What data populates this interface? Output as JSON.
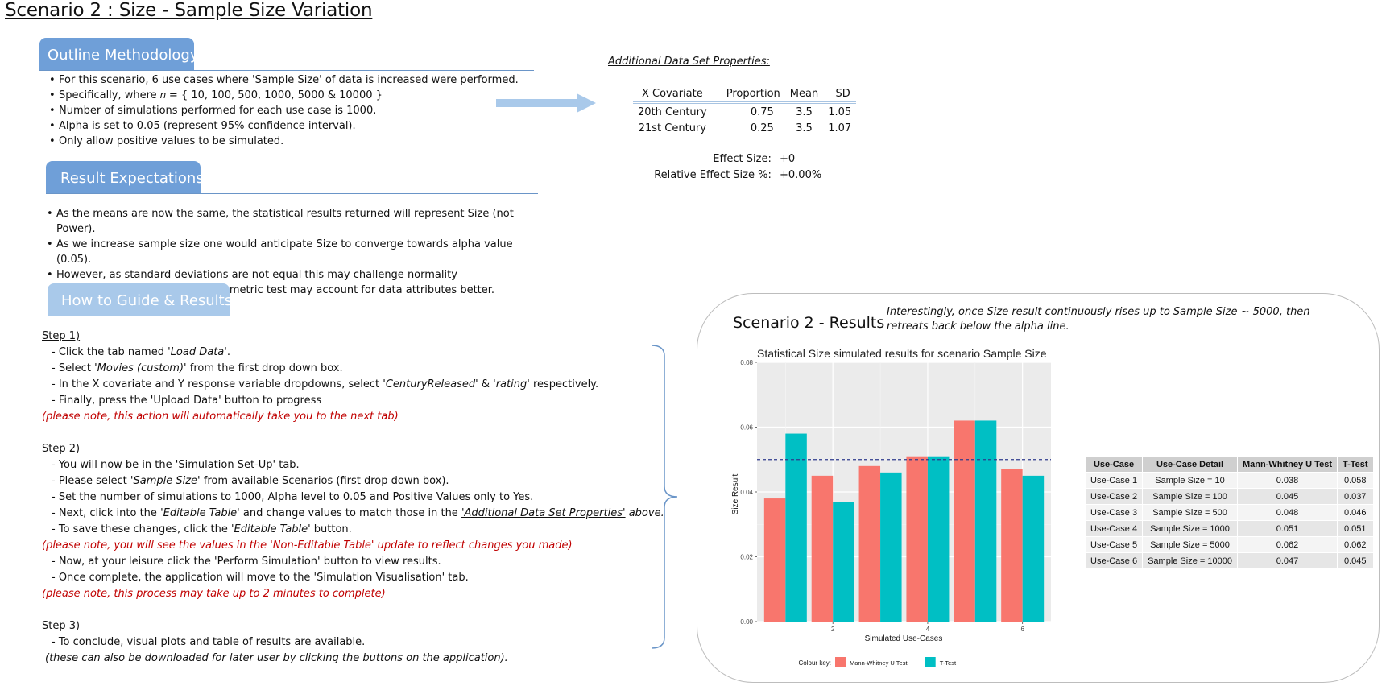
{
  "page_title": "Scenario 2 : Size - Sample Size Variation",
  "colors": {
    "header_dark": "#6f9fd8",
    "header_light": "#a9c9ea",
    "arrow": "#a9c9ea",
    "mann_whitney": "#f8766d",
    "t_test": "#00bfc4",
    "alpha_line": "#2e3a8c",
    "red_note": "#c00000"
  },
  "outline": {
    "header": "Outline Methodology",
    "bullets": [
      "For this scenario, 6 use cases where 'Sample Size' of data is increased were performed.",
      "Specifically, where 𝑛 = { 10, 100, 500, 1000, 5000 & 10000 }",
      "Number of simulations performed for each use case is 1000.",
      "Alpha is set to 0.05 (represent 95% confidence interval).",
      "Only allow positive values to be simulated."
    ]
  },
  "expectations": {
    "header": "Result Expectations",
    "bullets": [
      "As the means are now the same, the statistical results returned will represent Size (not Power).",
      "As we increase sample size one would anticipate Size to converge towards alpha value (0.05).",
      "However, as standard deviations are not equal this may challenge normality assumption and hence, non-parametric test may account for data attributes better."
    ]
  },
  "howto": {
    "header": "How to Guide & Results",
    "step1": {
      "label": "Step 1)",
      "l1a": "- Click the tab named ",
      "l1b": "'Load Data'",
      "l1c": ".",
      "l2a": "- Select ",
      "l2b": "'Movies (custom)'",
      "l2c": " from the first drop down box.",
      "l3a": "- In the X covariate and Y response variable dropdowns, select ",
      "l3b": "'CenturyReleased'",
      "l3c": " & ",
      "l3d": "'rating'",
      "l3e": " respectively.",
      "l4": "- Finally, press the 'Upload Data' button to progress",
      "note": "(please note, this action will automatically take you to the next tab)"
    },
    "step2": {
      "label": "Step 2)",
      "l1": "- You will now be in the 'Simulation Set-Up' tab.",
      "l2a": "- Please select ",
      "l2b": "'Sample Size'",
      "l2c": " from available Scenarios (first drop down box).",
      "l3": "- Set the number of simulations to 1000, Alpha level to 0.05 and Positive Values only to Yes.",
      "l4a": "- Next, click into the ",
      "l4b": "'Editable Table'",
      "l4c": " and change values to match those in the ",
      "l4d": "'Additional Data Set Properties'",
      "l4e": " above.",
      "l5a": "- To save these changes, click the ",
      "l5b": "'Editable Table'",
      "l5c": " button.",
      "note1": "(please note, you will see the values in the 'Non-Editable Table' update to reflect changes you made)",
      "l6": "- Now, at your leisure click the 'Perform Simulation' button to view results.",
      "l7": "- Once complete, the application will move to the 'Simulation Visualisation' tab.",
      "note2": "(please note, this process may take up to 2 minutes to complete)"
    },
    "step3": {
      "label": "Step 3)",
      "l1": "- To conclude, visual plots and table of results are available.",
      "note": "(these can also be downloaded for later user by clicking the buttons on the application)."
    }
  },
  "properties": {
    "title": "Additional Data Set Properties:",
    "headers": [
      "X Covariate",
      "Proportion",
      "Mean",
      "SD"
    ],
    "rows": [
      [
        "20th Century",
        "0.75",
        "3.5",
        "1.05"
      ],
      [
        "21st Century",
        "0.25",
        "3.5",
        "1.07"
      ]
    ],
    "effect_size_label": "Effect Size:",
    "effect_size_value": "+0",
    "relative_effect_label": "Relative Effect Size %:",
    "relative_effect_value": "+0.00%"
  },
  "results": {
    "title": "Scenario 2 - Results",
    "note": "Interestingly, once Size result continuously rises up to Sample Size ~ 5000, then retreats back below the alpha line.",
    "table_headers": [
      "Use-Case",
      "Use-Case Detail",
      "Mann-Whitney U Test",
      "T-Test"
    ],
    "table_rows": [
      [
        "Use-Case 1",
        "Sample Size = 10",
        "0.038",
        "0.058"
      ],
      [
        "Use-Case 2",
        "Sample Size = 100",
        "0.045",
        "0.037"
      ],
      [
        "Use-Case 3",
        "Sample Size = 500",
        "0.048",
        "0.046"
      ],
      [
        "Use-Case 4",
        "Sample Size = 1000",
        "0.051",
        "0.051"
      ],
      [
        "Use-Case 5",
        "Sample Size = 5000",
        "0.062",
        "0.062"
      ],
      [
        "Use-Case 6",
        "Sample Size = 10000",
        "0.047",
        "0.045"
      ]
    ]
  },
  "chart_data": {
    "type": "bar",
    "title": "Statistical Size simulated results for scenario Sample Size",
    "xlabel": "Simulated Use-Cases",
    "ylabel": "Size Result",
    "x": [
      1,
      2,
      3,
      4,
      5,
      6
    ],
    "x_tick_labels": [
      "2",
      "4",
      "6"
    ],
    "x_tick_values": [
      2,
      4,
      6
    ],
    "xlim": [
      0.4,
      6.6
    ],
    "ylim": [
      0,
      0.08
    ],
    "y_ticks": [
      "0.00",
      "0.02",
      "0.04",
      "0.06",
      "0.08"
    ],
    "alpha_line": 0.05,
    "grid": true,
    "legend_title": "Colour key:",
    "legend_position": "bottom",
    "series": [
      {
        "name": "Mann-Whitney U Test",
        "values": [
          0.038,
          0.045,
          0.048,
          0.051,
          0.062,
          0.047
        ]
      },
      {
        "name": "T-Test",
        "values": [
          0.058,
          0.037,
          0.046,
          0.051,
          0.062,
          0.045
        ]
      }
    ]
  }
}
